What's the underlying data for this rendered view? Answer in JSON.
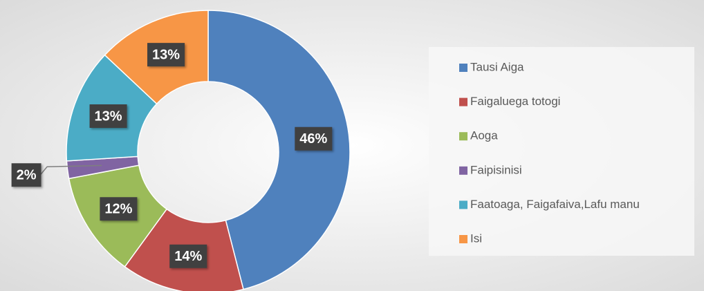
{
  "chart_data": {
    "type": "donut",
    "categories": [
      "Tausi Aiga",
      "Faigaluega totogi",
      "Aoga",
      "Faipisinisi",
      "Faatoaga, Faigafaiva,Lafu manu",
      "Isi"
    ],
    "values": [
      46,
      14,
      12,
      2,
      13,
      13
    ],
    "value_labels": [
      "46%",
      "14%",
      "12%",
      "2%",
      "13%",
      "13%"
    ],
    "colors": [
      "#4f81bd",
      "#c0504d",
      "#9bbb59",
      "#8064a2",
      "#4bacc6",
      "#f79646"
    ],
    "legend": "right"
  }
}
